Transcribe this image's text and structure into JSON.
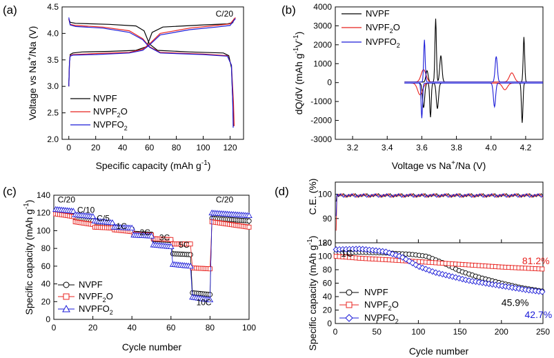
{
  "figure": {
    "a": {
      "panel_label": "(a)",
      "xlabel_main": "Specific capacity (mAh g",
      "xlabel_sup": "-1",
      "xlabel_end": ")",
      "ylabel_main": "Voltage vs Na",
      "ylabel_sup": "+",
      "ylabel_end": "/Na (V)",
      "rate": "C/20",
      "legend": [
        "NVPF",
        "NVPF",
        "NVPFO"
      ]
    },
    "b": {
      "panel_label": "(b)",
      "xlabel_main": "Voltage vs Na",
      "xlabel_sup": "+",
      "xlabel_end": "/Na (V)",
      "ylabel_main": "dQ/dV (mAh g",
      "ylabel_sup1": "-1",
      "ylabel_mid": "V",
      "ylabel_sup2": "-1",
      "ylabel_end": ")"
    },
    "c": {
      "panel_label": "(c)",
      "xlabel": "Cycle number",
      "ylabel_main": "Specific capacity (mAh g",
      "ylabel_sup": "-1",
      "ylabel_end": ")"
    },
    "d": {
      "panel_label": "(d)",
      "xlabel": "Cycle number",
      "ylabel_top": "C.E. (%)",
      "ylabel_main": "Specific capacity (mAh g",
      "ylabel_sup": "-1",
      "ylabel_end": ")",
      "rate": "1C"
    },
    "legend_names": {
      "nvpf": "NVPF",
      "nvpf2o_base": "NVPF",
      "nvpf2o_sub": "2",
      "nvpf2o_end": "O",
      "nvpfo2_base": "NVPFO",
      "nvpfo2_sub": "2"
    },
    "colors": {
      "nvpf": "#000000",
      "nvpf2o": "#e8201c",
      "nvpfo2": "#1a1ad8"
    }
  },
  "chart_data": [
    {
      "id": "a",
      "type": "line",
      "title": "",
      "xlabel": "Specific capacity (mAh g-1)",
      "ylabel": "Voltage vs Na+/Na (V)",
      "xlim": [
        -5,
        130
      ],
      "ylim": [
        2.0,
        4.5
      ],
      "xticks": [
        0,
        20,
        40,
        60,
        80,
        100,
        120
      ],
      "yticks": [
        2.0,
        2.5,
        3.0,
        3.5,
        4.0,
        4.5
      ],
      "series": [
        {
          "name": "NVPF",
          "color": "#000000",
          "charge": [
            [
              0,
              3.0
            ],
            [
              0.5,
              3.45
            ],
            [
              1,
              3.6
            ],
            [
              3,
              3.63
            ],
            [
              10,
              3.65
            ],
            [
              30,
              3.66
            ],
            [
              50,
              3.68
            ],
            [
              58,
              3.75
            ],
            [
              62,
              4.02
            ],
            [
              70,
              4.12
            ],
            [
              100,
              4.16
            ],
            [
              118,
              4.18
            ],
            [
              122,
              4.2
            ],
            [
              123,
              4.28
            ]
          ],
          "discharge": [
            [
              0,
              4.27
            ],
            [
              1,
              4.21
            ],
            [
              5,
              4.19
            ],
            [
              30,
              4.17
            ],
            [
              50,
              4.14
            ],
            [
              56,
              4.05
            ],
            [
              60,
              3.8
            ],
            [
              66,
              3.68
            ],
            [
              90,
              3.65
            ],
            [
              115,
              3.63
            ],
            [
              119,
              3.58
            ],
            [
              121,
              3.35
            ],
            [
              122,
              2.7
            ],
            [
              122.5,
              2.25
            ]
          ]
        },
        {
          "name": "NVPF2O",
          "color": "#e8201c",
          "charge": [
            [
              0,
              3.0
            ],
            [
              0.5,
              3.45
            ],
            [
              1,
              3.58
            ],
            [
              3,
              3.6
            ],
            [
              20,
              3.62
            ],
            [
              45,
              3.64
            ],
            [
              55,
              3.7
            ],
            [
              60,
              3.8
            ],
            [
              68,
              4.0
            ],
            [
              90,
              4.1
            ],
            [
              110,
              4.15
            ],
            [
              120,
              4.18
            ],
            [
              124,
              4.3
            ]
          ],
          "discharge": [
            [
              0,
              4.27
            ],
            [
              1,
              4.17
            ],
            [
              5,
              4.15
            ],
            [
              25,
              4.12
            ],
            [
              45,
              4.05
            ],
            [
              55,
              3.9
            ],
            [
              60,
              3.75
            ],
            [
              68,
              3.64
            ],
            [
              100,
              3.61
            ],
            [
              118,
              3.58
            ],
            [
              121,
              3.4
            ],
            [
              122.5,
              2.7
            ],
            [
              123,
              2.25
            ]
          ]
        },
        {
          "name": "NVPFO2",
          "color": "#1a1ad8",
          "charge": [
            [
              0,
              3.0
            ],
            [
              0.5,
              3.45
            ],
            [
              1,
              3.57
            ],
            [
              3,
              3.59
            ],
            [
              20,
              3.6
            ],
            [
              45,
              3.63
            ],
            [
              55,
              3.68
            ],
            [
              60,
              3.78
            ],
            [
              68,
              3.97
            ],
            [
              90,
              4.07
            ],
            [
              110,
              4.12
            ],
            [
              120,
              4.15
            ],
            [
              124,
              4.28
            ]
          ],
          "discharge": [
            [
              0,
              4.3
            ],
            [
              1,
              4.16
            ],
            [
              5,
              4.13
            ],
            [
              25,
              4.1
            ],
            [
              45,
              4.02
            ],
            [
              55,
              3.88
            ],
            [
              60,
              3.74
            ],
            [
              68,
              3.63
            ],
            [
              100,
              3.6
            ],
            [
              118,
              3.57
            ],
            [
              121,
              3.4
            ],
            [
              122,
              2.7
            ],
            [
              122.3,
              2.22
            ]
          ]
        }
      ]
    },
    {
      "id": "b",
      "type": "line",
      "title": "",
      "xlabel": "Voltage vs Na+/Na (V)",
      "ylabel": "dQ/dV (mAh g-1V-1)",
      "xlim": [
        3.1,
        4.3
      ],
      "ylim": [
        -3000,
        4000
      ],
      "xticks": [
        3.2,
        3.4,
        3.6,
        3.8,
        4.0,
        4.2
      ],
      "yticks": [
        -3000,
        -2000,
        -1000,
        0,
        1000,
        2000,
        3000,
        4000
      ],
      "series": [
        {
          "name": "NVPF",
          "color": "#000000",
          "charge_peaks": [
            [
              3.63,
              600
            ],
            [
              3.68,
              3350
            ],
            [
              3.71,
              1400
            ],
            [
              4.19,
              2380
            ]
          ],
          "discharge_peaks": [
            [
              3.61,
              -1300
            ],
            [
              3.65,
              -1800
            ],
            [
              3.69,
              -1350
            ],
            [
              4.18,
              -2100
            ]
          ]
        },
        {
          "name": "NVPF2O",
          "color": "#e8201c",
          "charge_peaks": [
            [
              3.61,
              650
            ],
            [
              4.12,
              480
            ]
          ],
          "discharge_peaks": [
            [
              3.59,
              -620
            ],
            [
              4.08,
              -350
            ]
          ]
        },
        {
          "name": "NVPFO2",
          "color": "#1a1ad8",
          "charge_peaks": [
            [
              3.615,
              2230
            ],
            [
              4.03,
              1350
            ]
          ],
          "discharge_peaks": [
            [
              3.6,
              -1850
            ],
            [
              4.02,
              -1250
            ]
          ]
        }
      ]
    },
    {
      "id": "c",
      "type": "scatter",
      "title": "",
      "xlabel": "Cycle number",
      "ylabel": "Specific capacity (mAh g-1)",
      "xlim": [
        0,
        100
      ],
      "ylim": [
        0,
        140
      ],
      "xticks": [
        0,
        20,
        40,
        60,
        80,
        100
      ],
      "yticks": [
        0,
        20,
        40,
        60,
        80,
        100,
        120,
        140
      ],
      "rate_labels": [
        "C/20",
        "C/10",
        "C/5",
        "1C",
        "2C",
        "3C",
        "5C",
        "10C",
        "C/20"
      ],
      "series": [
        {
          "name": "NVPF",
          "color": "#000000",
          "marker": "circle",
          "segments": [
            [
              1,
              10,
              121,
              117
            ],
            [
              11,
              20,
              114,
              111
            ],
            [
              21,
              30,
              109,
              107
            ],
            [
              31,
              40,
              104,
              102
            ],
            [
              41,
              50,
              97,
              96
            ],
            [
              51,
              60,
              90,
              89
            ],
            [
              61,
              70,
              74,
              73
            ],
            [
              71,
              80,
              30,
              28
            ],
            [
              81,
              100,
              114,
              111
            ]
          ]
        },
        {
          "name": "NVPF2O",
          "color": "#e8201c",
          "marker": "square",
          "segments": [
            [
              1,
              10,
              119,
              116
            ],
            [
              11,
              20,
              110,
              107
            ],
            [
              21,
              30,
              104,
              103
            ],
            [
              31,
              40,
              101,
              99
            ],
            [
              41,
              50,
              96,
              95
            ],
            [
              51,
              60,
              91,
              90
            ],
            [
              61,
              70,
              85,
              85
            ],
            [
              71,
              80,
              58,
              57
            ],
            [
              81,
              100,
              110,
              104
            ]
          ]
        },
        {
          "name": "NVPFO2",
          "color": "#1a1ad8",
          "marker": "triangle",
          "segments": [
            [
              1,
              10,
              124,
              122
            ],
            [
              11,
              20,
              118,
              116
            ],
            [
              21,
              30,
              111,
              109
            ],
            [
              31,
              40,
              104,
              103
            ],
            [
              41,
              50,
              95,
              94
            ],
            [
              51,
              60,
              84,
              82
            ],
            [
              61,
              70,
              62,
              60
            ],
            [
              71,
              80,
              25,
              22
            ],
            [
              81,
              100,
              120,
              117
            ]
          ]
        }
      ]
    },
    {
      "id": "d",
      "type": "scatter",
      "title": "",
      "xlabel": "Cycle number",
      "ylabel": "Specific capacity (mAh g-1)",
      "top_ylabel": "C.E. (%)",
      "xlim": [
        0,
        250
      ],
      "xticks": [
        0,
        50,
        100,
        150,
        200,
        250
      ],
      "top_ylim": [
        80,
        100
      ],
      "top_yticks": [
        80,
        90,
        100
      ],
      "bottom_ylim": [
        0,
        120
      ],
      "bottom_yticks": [
        0,
        20,
        40,
        60,
        80,
        100,
        120
      ],
      "ce": {
        "value": 99.5,
        "first_cycle": {
          "NVPF": 97,
          "NVPF2O": 85,
          "NVPFO2": 91
        }
      },
      "series": [
        {
          "name": "NVPF",
          "color": "#000000",
          "marker": "circle",
          "retention": "45.9%",
          "capacity": [
            [
              1,
              105
            ],
            [
              30,
              106
            ],
            [
              60,
              105
            ],
            [
              90,
              103
            ],
            [
              110,
              100
            ],
            [
              130,
              90
            ],
            [
              150,
              78
            ],
            [
              175,
              68
            ],
            [
              200,
              60
            ],
            [
              225,
              53
            ],
            [
              250,
              48
            ]
          ]
        },
        {
          "name": "NVPF2O",
          "color": "#e8201c",
          "marker": "square",
          "retention": "81.2%",
          "capacity": [
            [
              1,
              100
            ],
            [
              30,
              97
            ],
            [
              60,
              95
            ],
            [
              100,
              92
            ],
            [
              150,
              88
            ],
            [
              200,
              84
            ],
            [
              250,
              81
            ]
          ]
        },
        {
          "name": "NVPFO2",
          "color": "#1a1ad8",
          "marker": "diamond",
          "retention": "42.7%",
          "capacity": [
            [
              1,
              110
            ],
            [
              30,
              111
            ],
            [
              60,
              107
            ],
            [
              80,
              99
            ],
            [
              100,
              85
            ],
            [
              120,
              76
            ],
            [
              140,
              70
            ],
            [
              160,
              64
            ],
            [
              200,
              56
            ],
            [
              230,
              50
            ],
            [
              250,
              47
            ]
          ]
        }
      ]
    }
  ]
}
